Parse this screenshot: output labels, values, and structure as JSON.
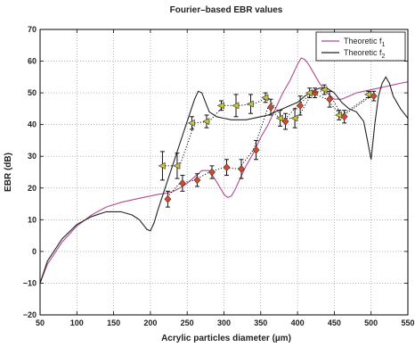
{
  "chart_data": {
    "type": "line",
    "title": "Fourier–based EBR values",
    "xlabel": "Acrylic particles diameter (µm)",
    "ylabel": "EBR (dB)",
    "xlim": [
      50,
      550
    ],
    "ylim": [
      -20,
      70
    ],
    "xticks": [
      "50",
      "100",
      "150",
      "200",
      "250",
      "300",
      "350",
      "400",
      "450",
      "500",
      "550"
    ],
    "yticks": [
      "−20",
      "−10",
      "0",
      "10",
      "20",
      "30",
      "40",
      "50",
      "60",
      "70"
    ],
    "grid": true,
    "legend_position": "top-right",
    "legend": [
      {
        "label": "Theoretic f",
        "sub": "1",
        "color": "#b04a8f"
      },
      {
        "label": "Theoretic f",
        "sub": "2",
        "color": "#222222"
      }
    ],
    "series": [
      {
        "color": "#b04a8f",
        "style": "solid",
        "x": [
          50,
          60,
          80,
          100,
          120,
          140,
          160,
          180,
          200,
          210,
          220,
          230,
          240,
          250,
          260,
          270,
          280,
          290,
          300,
          305,
          310,
          315,
          320,
          330,
          340,
          350,
          360,
          370,
          380,
          390,
          400,
          405,
          410,
          415,
          420,
          430,
          440,
          450,
          460,
          470,
          480,
          490,
          500,
          510,
          520,
          530,
          540,
          550
        ],
        "y": [
          -10,
          -4,
          3,
          8,
          11.5,
          14,
          15.5,
          16.5,
          17.5,
          18,
          18.3,
          18.8,
          20,
          21.5,
          23.5,
          25.5,
          25.5,
          22,
          18,
          17,
          17.5,
          19.5,
          22,
          27,
          31,
          36,
          40,
          45,
          50,
          54,
          59,
          61,
          60.5,
          59,
          57,
          53,
          50,
          48,
          48,
          49,
          50,
          50.5,
          51,
          51.5,
          52,
          52.5,
          53,
          53.5
        ]
      },
      {
        "color": "#222222",
        "style": "solid",
        "x": [
          50,
          60,
          80,
          100,
          120,
          140,
          160,
          175,
          185,
          195,
          200,
          205,
          210,
          220,
          230,
          240,
          250,
          260,
          265,
          270,
          275,
          280,
          290,
          300,
          310,
          320,
          330,
          340,
          350,
          360,
          370,
          380,
          390,
          400,
          410,
          420,
          430,
          440,
          450,
          460,
          470,
          480,
          490,
          495,
          500,
          505,
          510,
          515,
          520,
          525,
          530,
          540,
          550
        ],
        "y": [
          -10,
          -3,
          4,
          8.5,
          11,
          12.5,
          12.5,
          11.5,
          10,
          7,
          6.5,
          9,
          13,
          20,
          27,
          34,
          41,
          48,
          50.5,
          50,
          47,
          44,
          42.5,
          42,
          41.5,
          41.5,
          41.5,
          42,
          42.5,
          43,
          44,
          45,
          46,
          47,
          49,
          50.5,
          51.5,
          51.5,
          50,
          47,
          45,
          44,
          41,
          35,
          29,
          40,
          49,
          53,
          55,
          53,
          49,
          45,
          42
        ]
      },
      {
        "name": "",
        "color": "#d64a2a",
        "marker": "diamond",
        "style": "dotted",
        "x": [
          220,
          240,
          260,
          280,
          300,
          320,
          340,
          360,
          380,
          400,
          420,
          440,
          460,
          500
        ],
        "y": [
          16.5,
          21.5,
          22.5,
          25,
          26.5,
          26,
          32,
          45.5,
          41,
          46,
          50,
          48,
          42.5,
          49
        ],
        "err": [
          2.5,
          2.5,
          2,
          2,
          2.5,
          3,
          3,
          2.5,
          2.5,
          3,
          1.5,
          2.5,
          2,
          1.5
        ]
      },
      {
        "name": "",
        "color": "#c9c23a",
        "marker": "triangle",
        "style": "dotted",
        "x": [
          220,
          240,
          260,
          280,
          300,
          320,
          340,
          360,
          380,
          400,
          420,
          440,
          460,
          500
        ],
        "y": [
          27,
          27,
          40.5,
          41,
          46,
          46,
          46.5,
          48.5,
          42,
          42,
          50,
          51,
          43,
          49.5
        ],
        "err": [
          4.5,
          4,
          2,
          2,
          1.5,
          3.5,
          3,
          1.5,
          2.5,
          3,
          1.5,
          1.5,
          1.5,
          1
        ]
      }
    ]
  }
}
